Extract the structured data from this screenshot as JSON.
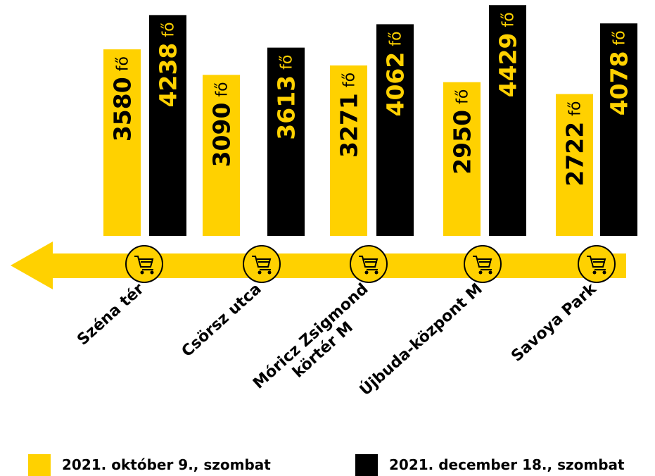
{
  "chart_data": {
    "type": "bar",
    "categories": [
      "Széna tér",
      "Csörsz utca",
      "Móricz Zsigmond\nkörtér M",
      "Újbuda-központ M",
      "Savoya Park"
    ],
    "unit": "fő",
    "ylim": [
      0,
      4500
    ],
    "series": [
      {
        "name": "2021. október 9., szombat",
        "color": "#ffd100",
        "values": [
          3580,
          3090,
          3271,
          2950,
          2722
        ]
      },
      {
        "name": "2021. december 18., szombat",
        "color": "#000000",
        "values": [
          4238,
          3613,
          4062,
          4429,
          4078
        ]
      }
    ]
  }
}
